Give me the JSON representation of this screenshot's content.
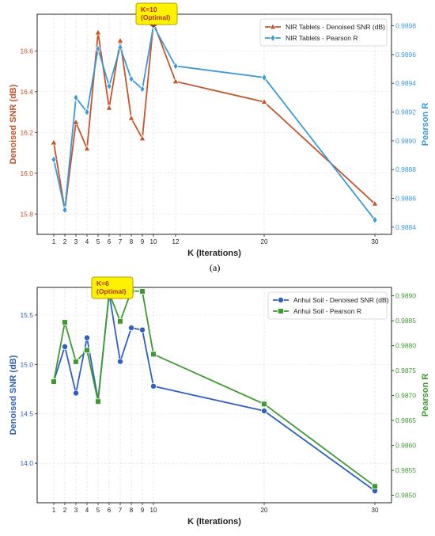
{
  "panel_labels": [
    "(a)"
  ],
  "chart_data": [
    {
      "type": "line",
      "xlabel": "K (Iterations)",
      "ylabel_left": "Denoised SNR (dB)",
      "ylabel_right": "Pearson R",
      "x": [
        1,
        2,
        3,
        4,
        5,
        6,
        7,
        8,
        9,
        10,
        12,
        20,
        30
      ],
      "xticks": [
        "1",
        "2",
        "3",
        "4",
        "5",
        "6",
        "7",
        "8",
        "9",
        "10",
        "12",
        "20",
        "30"
      ],
      "xlim": [
        -0.5,
        31.5
      ],
      "ylim_left": [
        15.7,
        16.78
      ],
      "yticks_left": [
        "15.8",
        "16.0",
        "16.2",
        "16.4",
        "16.6"
      ],
      "ylim_right": [
        0.98835,
        0.98988
      ],
      "yticks_right": [
        "0.9884",
        "0.9886",
        "0.9888",
        "0.9890",
        "0.9892",
        "0.9894",
        "0.9896",
        "0.9898"
      ],
      "grid": true,
      "legend_position": "top-right",
      "colors": {
        "left": "#c4542a",
        "right": "#3a9ad9"
      },
      "series": [
        {
          "name": "NIR Tablets - Denoised SNR (dB)",
          "axis": "left",
          "color": "#c4542a",
          "marker": "triangle",
          "values": [
            16.15,
            15.82,
            16.25,
            16.12,
            16.69,
            16.32,
            16.65,
            16.27,
            16.17,
            16.74,
            16.45,
            16.35,
            15.85
          ]
        },
        {
          "name": "NIR Tablets - Pearson R",
          "axis": "right",
          "color": "#3a9ad9",
          "marker": "diamond",
          "values": [
            0.98887,
            0.98852,
            0.9893,
            0.9892,
            0.98964,
            0.98938,
            0.98965,
            0.98943,
            0.98936,
            0.9898,
            0.98952,
            0.98944,
            0.98845
          ]
        }
      ],
      "annotation": {
        "text_line1": "K=10",
        "text_line2": "(Optimal)",
        "x": 10,
        "y": 16.74
      }
    },
    {
      "type": "line",
      "xlabel": "K (Iterations)",
      "ylabel_left": "Denoised SNR (dB)",
      "ylabel_right": "Pearson R",
      "x": [
        1,
        2,
        3,
        4,
        5,
        6,
        7,
        8,
        9,
        10,
        20,
        30
      ],
      "xticks": [
        "1",
        "2",
        "3",
        "4",
        "5",
        "6",
        "7",
        "8",
        "9",
        "10",
        "20",
        "30"
      ],
      "xlim": [
        -0.5,
        31.5
      ],
      "ylim_left": [
        13.6,
        15.78
      ],
      "yticks_left": [
        "14.0",
        "14.5",
        "15.0",
        "15.5"
      ],
      "ylim_right": [
        0.98485,
        0.98917
      ],
      "yticks_right": [
        "0.9850",
        "0.9855",
        "0.9860",
        "0.9865",
        "0.9870",
        "0.9875",
        "0.9880",
        "0.9885",
        "0.9890"
      ],
      "grid": true,
      "legend_position": "top-right",
      "colors": {
        "left": "#2f5fbf",
        "right": "#3c9a2e"
      },
      "series": [
        {
          "name": "Anhui Soil - Denoised SNR (dB)",
          "axis": "left",
          "color": "#2f5fbf",
          "marker": "circle",
          "values": [
            14.83,
            15.18,
            14.71,
            15.27,
            14.64,
            15.72,
            15.03,
            15.37,
            15.35,
            14.78,
            14.53,
            13.72
          ]
        },
        {
          "name": "Anhui Soil - Pearson R",
          "axis": "right",
          "color": "#3c9a2e",
          "marker": "square",
          "values": [
            0.98728,
            0.98847,
            0.98768,
            0.98791,
            0.98688,
            0.98906,
            0.98849,
            0.9891,
            0.98909,
            0.98783,
            0.98683,
            0.98518
          ]
        }
      ],
      "annotation": {
        "text_line1": "K=6",
        "text_line2": "(Optimal)",
        "x": 6,
        "y": 15.72
      }
    }
  ]
}
